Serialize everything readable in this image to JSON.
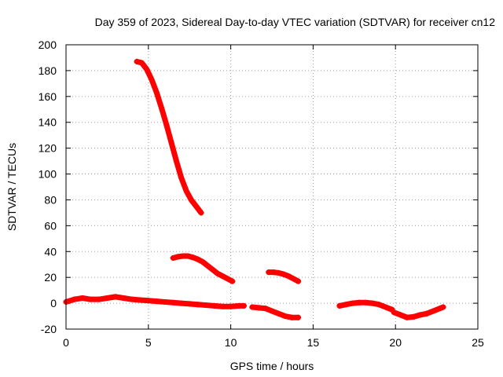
{
  "chart_data": {
    "type": "scatter",
    "title": "Day 359 of 2023, Sidereal Day-to-day VTEC variation (SDTVAR) for receiver cn12",
    "xlabel": "GPS time / hours",
    "ylabel": "SDTVAR / TECUs",
    "xlim": [
      0,
      25
    ],
    "ylim": [
      -20,
      200
    ],
    "xticks": [
      0,
      5,
      10,
      15,
      20,
      25
    ],
    "yticks": [
      -20,
      0,
      20,
      40,
      60,
      80,
      100,
      120,
      140,
      160,
      180,
      200
    ],
    "grid": true,
    "marker": "plus",
    "color": "#ff0000",
    "series": [
      {
        "name": "high-arc",
        "x": [
          4.3,
          4.6,
          4.9,
          5.2,
          5.5,
          5.8,
          6.1,
          6.4,
          6.7,
          7.0,
          7.3,
          7.6,
          7.9,
          8.2
        ],
        "y": [
          187,
          186,
          181,
          173,
          163,
          151,
          138,
          124,
          110,
          97,
          87,
          80,
          75,
          70
        ]
      },
      {
        "name": "mid-arc",
        "x": [
          6.5,
          6.8,
          7.1,
          7.4,
          7.7,
          8.0,
          8.3,
          8.6,
          8.9,
          9.2,
          9.5,
          9.8,
          10.1
        ],
        "y": [
          35,
          36,
          36.5,
          36.5,
          35.5,
          34,
          32,
          29,
          26,
          23,
          21,
          19,
          17
        ]
      },
      {
        "name": "arc-12h",
        "x": [
          12.3,
          12.6,
          12.9,
          13.2,
          13.5,
          13.8,
          14.1
        ],
        "y": [
          24,
          24,
          23.5,
          22.5,
          21,
          19,
          17
        ]
      },
      {
        "name": "baseline",
        "x": [
          0.0,
          0.5,
          1.0,
          1.5,
          2.0,
          2.5,
          3.0,
          3.5,
          4.0,
          4.5,
          5.0,
          5.5,
          6.0,
          6.5,
          7.0,
          7.5,
          8.0,
          8.5,
          9.0,
          9.5,
          10.0,
          10.5,
          10.8
        ],
        "y": [
          1,
          3,
          4,
          3,
          3,
          4,
          5,
          4,
          3,
          2.5,
          2,
          1.5,
          1,
          0.5,
          0,
          -0.5,
          -1,
          -1.5,
          -2,
          -2.5,
          -2.5,
          -2,
          -2
        ]
      },
      {
        "name": "arc-11-14h",
        "x": [
          11.3,
          11.7,
          12.1,
          12.5,
          12.9,
          13.3,
          13.7,
          14.1
        ],
        "y": [
          -3,
          -3.5,
          -4,
          -6,
          -8,
          -10,
          -11,
          -11
        ]
      },
      {
        "name": "arc-17-20h",
        "x": [
          16.6,
          17.0,
          17.4,
          17.8,
          18.2,
          18.6,
          19.0,
          19.4,
          19.8
        ],
        "y": [
          -2,
          -1,
          0,
          0.5,
          0.5,
          0,
          -1,
          -3,
          -5
        ]
      },
      {
        "name": "arc-20-23h",
        "x": [
          19.9,
          20.3,
          20.7,
          21.1,
          21.5,
          21.9,
          22.3,
          22.7,
          22.9
        ],
        "y": [
          -7,
          -9,
          -11,
          -10.5,
          -9,
          -8,
          -6,
          -4,
          -3
        ]
      }
    ]
  }
}
